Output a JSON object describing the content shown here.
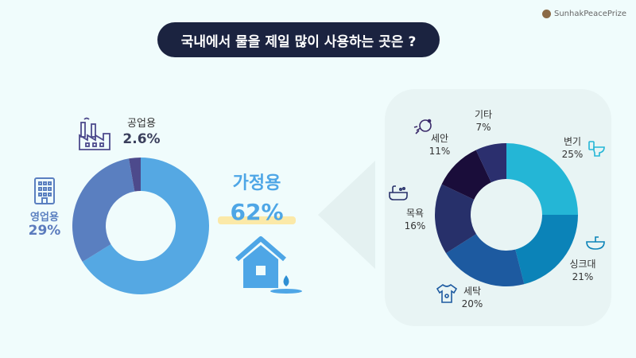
{
  "title": "국내에서 물을 제일 많이 사용하는 곳은 ?",
  "brand": "SunhakPeacePrize",
  "colors": {
    "title_bg": "#1b2340",
    "household": "#55a8e3",
    "commercial": "#5a7fc0",
    "industrial": "#4d4a8c",
    "toilet": "#24b6d6",
    "sink": "#0b83b8",
    "laundry": "#1d5aa0",
    "bath": "#27306a",
    "face": "#1a0d3a",
    "other": "#2b2f6e"
  },
  "icons": {
    "industrial": "factory-icon",
    "commercial": "building-icon",
    "household": "house-icon",
    "toilet": "toilet-icon",
    "sink": "sink-icon",
    "laundry": "shirt-icon",
    "bath": "bathtub-icon",
    "face": "face-wash-icon"
  },
  "chart_data": [
    {
      "type": "pie",
      "donut": true,
      "categories": [
        "가정용",
        "영업용",
        "공업용"
      ],
      "values": [
        62,
        29,
        2.6
      ],
      "value_labels": [
        "62%",
        "29%",
        "2.6%"
      ]
    },
    {
      "type": "pie",
      "donut": true,
      "categories": [
        "변기",
        "싱크대",
        "세탁",
        "목욕",
        "세안",
        "기타"
      ],
      "values": [
        25,
        21,
        20,
        16,
        11,
        7
      ],
      "value_labels": [
        "25%",
        "21%",
        "20%",
        "16%",
        "11%",
        "7%"
      ]
    }
  ]
}
